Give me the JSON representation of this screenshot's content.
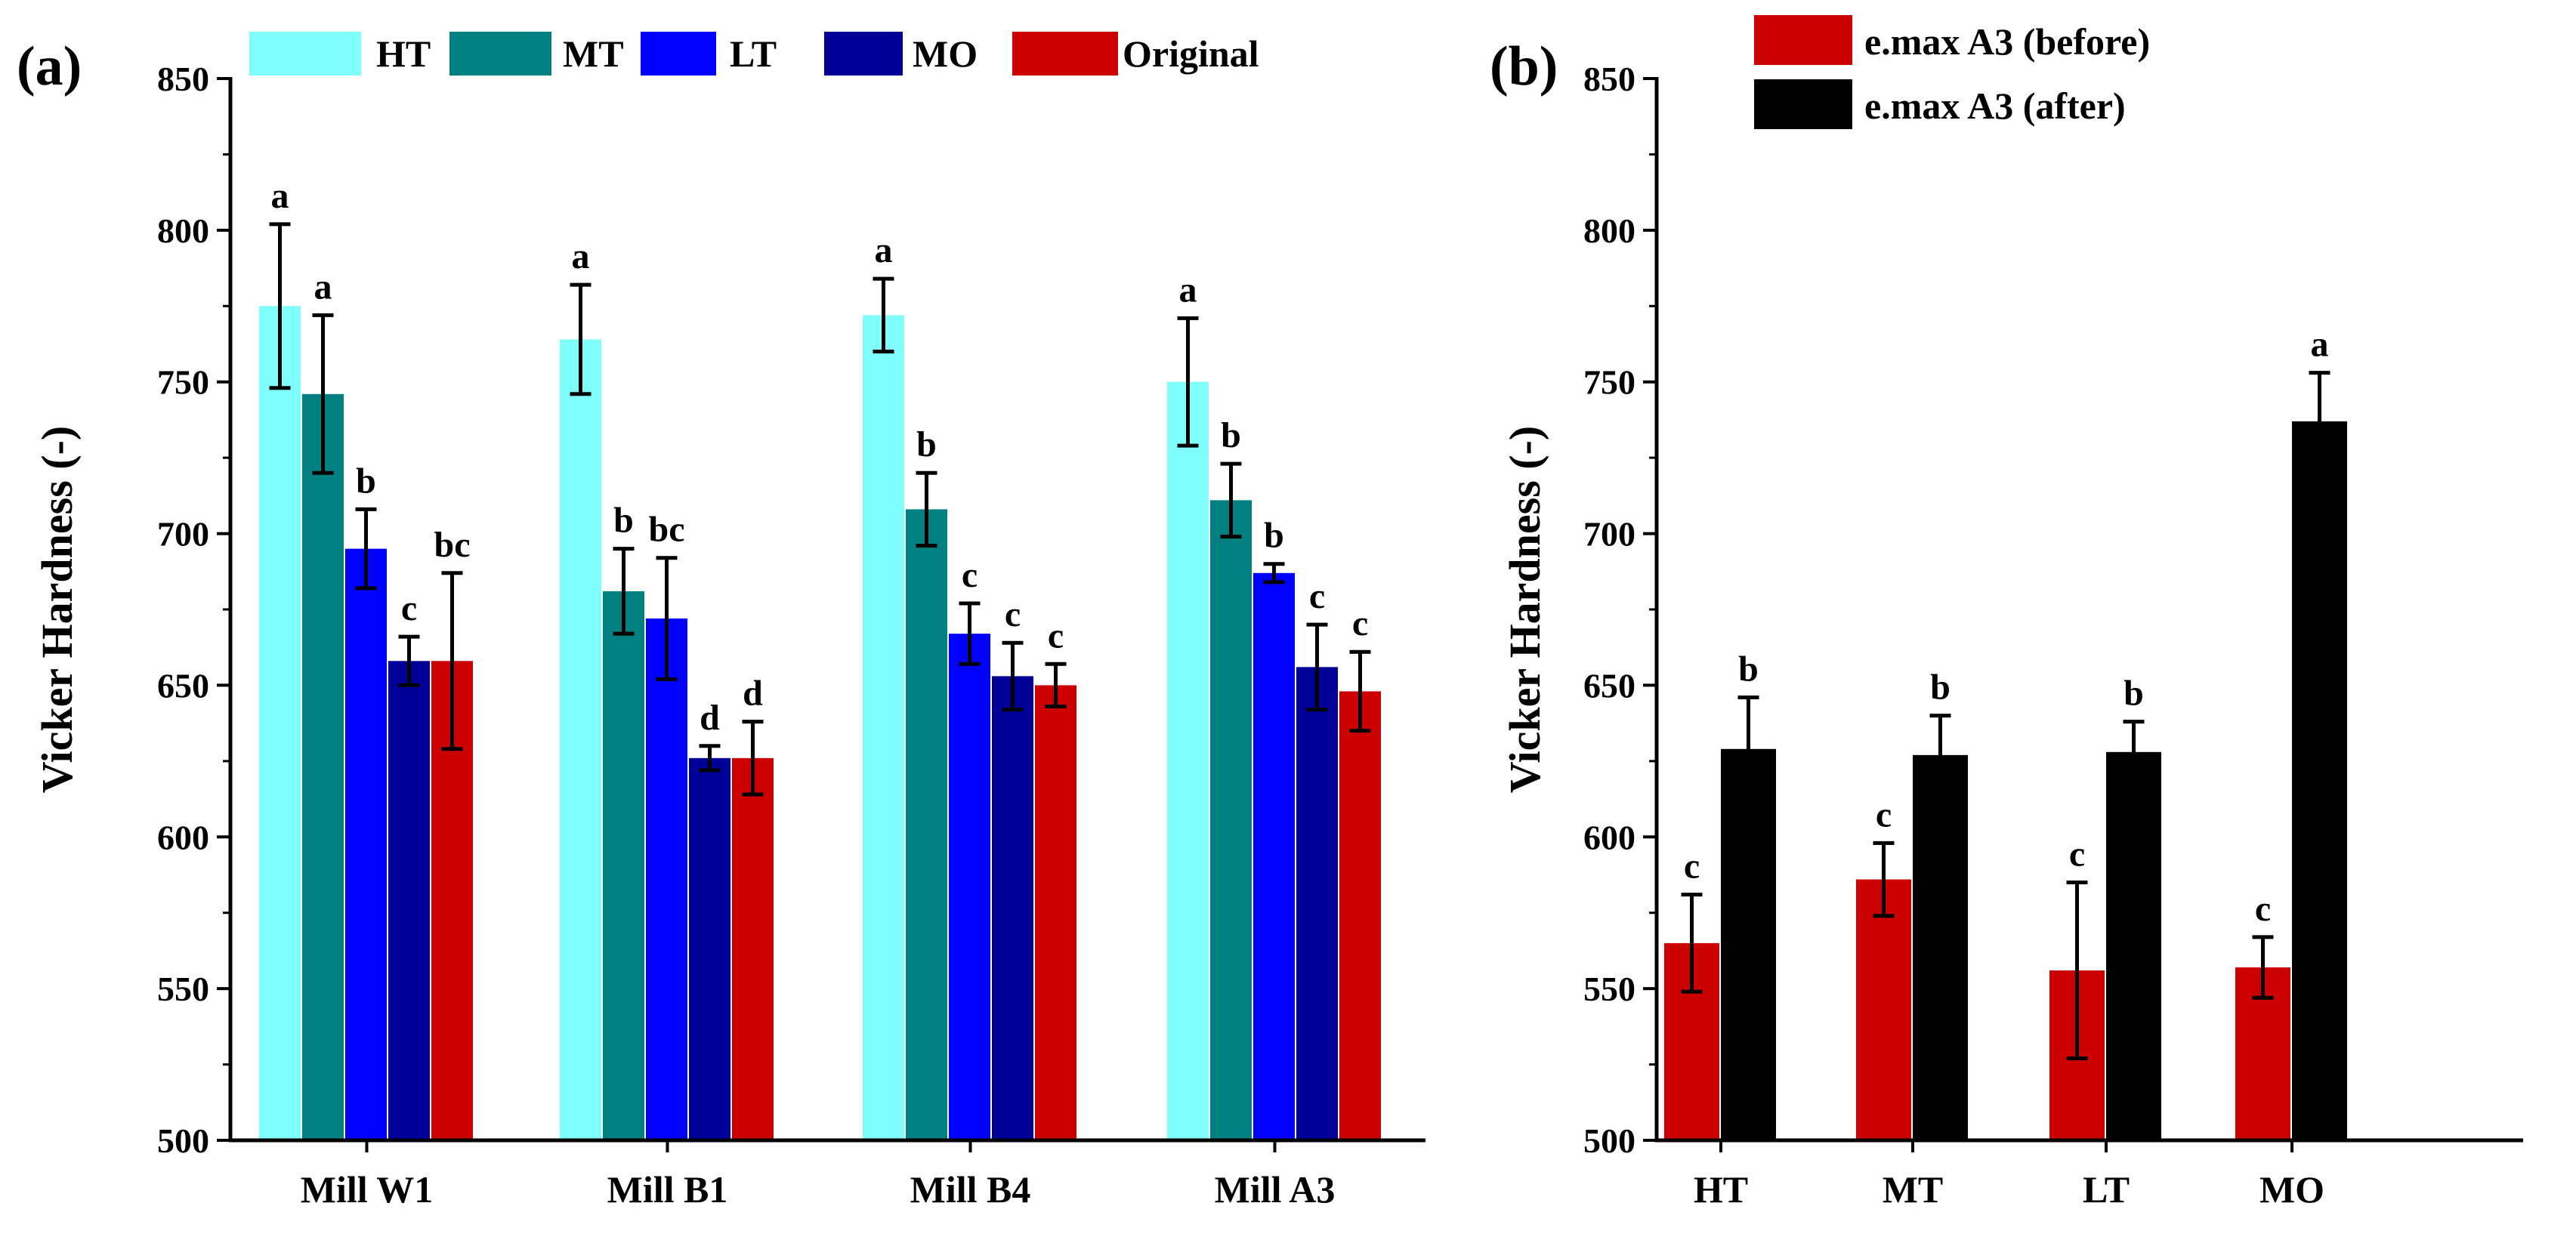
{
  "figure_labels": {
    "a": "(a)",
    "b": "(b)"
  },
  "chart_data": [
    {
      "panel": "(a)",
      "type": "bar",
      "title": "",
      "xlabel": "",
      "ylabel": "Vicker Hardness (-)",
      "ylim": [
        500,
        850
      ],
      "yticks": [
        500,
        550,
        600,
        650,
        700,
        750,
        800,
        850
      ],
      "grid": false,
      "legend_position": "top",
      "categories": [
        "Mill W1",
        "Mill B1",
        "Mill B4",
        "Mill A3"
      ],
      "series": [
        {
          "name": "HT",
          "color": "#80FFFF",
          "values": [
            775,
            764,
            772,
            750
          ],
          "errors": [
            27,
            18,
            12,
            21
          ],
          "labels": [
            "a",
            "a",
            "a",
            "a"
          ]
        },
        {
          "name": "MT",
          "color": "#008080",
          "values": [
            746,
            681,
            708,
            711
          ],
          "errors": [
            26,
            14,
            12,
            12
          ],
          "labels": [
            "a",
            "b",
            "b",
            "b"
          ]
        },
        {
          "name": "LT",
          "color": "#0000FF",
          "values": [
            695,
            672,
            667,
            687
          ],
          "errors": [
            13,
            20,
            10,
            3
          ],
          "labels": [
            "b",
            "bc",
            "c",
            "b"
          ]
        },
        {
          "name": "MO",
          "color": "#000099",
          "values": [
            658,
            626,
            653,
            656
          ],
          "errors": [
            8,
            4,
            11,
            14
          ],
          "labels": [
            "c",
            "d",
            "c",
            "c"
          ]
        },
        {
          "name": "Original",
          "color": "#CC0000",
          "values": [
            658,
            626,
            650,
            648
          ],
          "errors": [
            29,
            12,
            7,
            13
          ],
          "labels": [
            "bc",
            "d",
            "c",
            "c"
          ]
        }
      ]
    },
    {
      "panel": "(b)",
      "type": "bar",
      "title": "",
      "xlabel": "",
      "ylabel": "Vicker Hardness (-)",
      "ylim": [
        500,
        850
      ],
      "yticks": [
        500,
        550,
        600,
        650,
        700,
        750,
        800,
        850
      ],
      "grid": false,
      "legend_position": "top-left",
      "categories": [
        "HT",
        "MT",
        "LT",
        "MO"
      ],
      "series": [
        {
          "name": "e.max A3 (before)",
          "color": "#CC0000",
          "values": [
            565,
            586,
            556,
            557
          ],
          "errors": [
            16,
            12,
            29,
            10
          ],
          "labels": [
            "c",
            "c",
            "c",
            "c"
          ]
        },
        {
          "name": "e.max A3 (after)",
          "color": "#000000",
          "values": [
            629,
            627,
            628,
            737
          ],
          "errors": [
            17,
            13,
            10,
            16
          ],
          "labels": [
            "b",
            "b",
            "b",
            "a"
          ]
        }
      ]
    }
  ]
}
